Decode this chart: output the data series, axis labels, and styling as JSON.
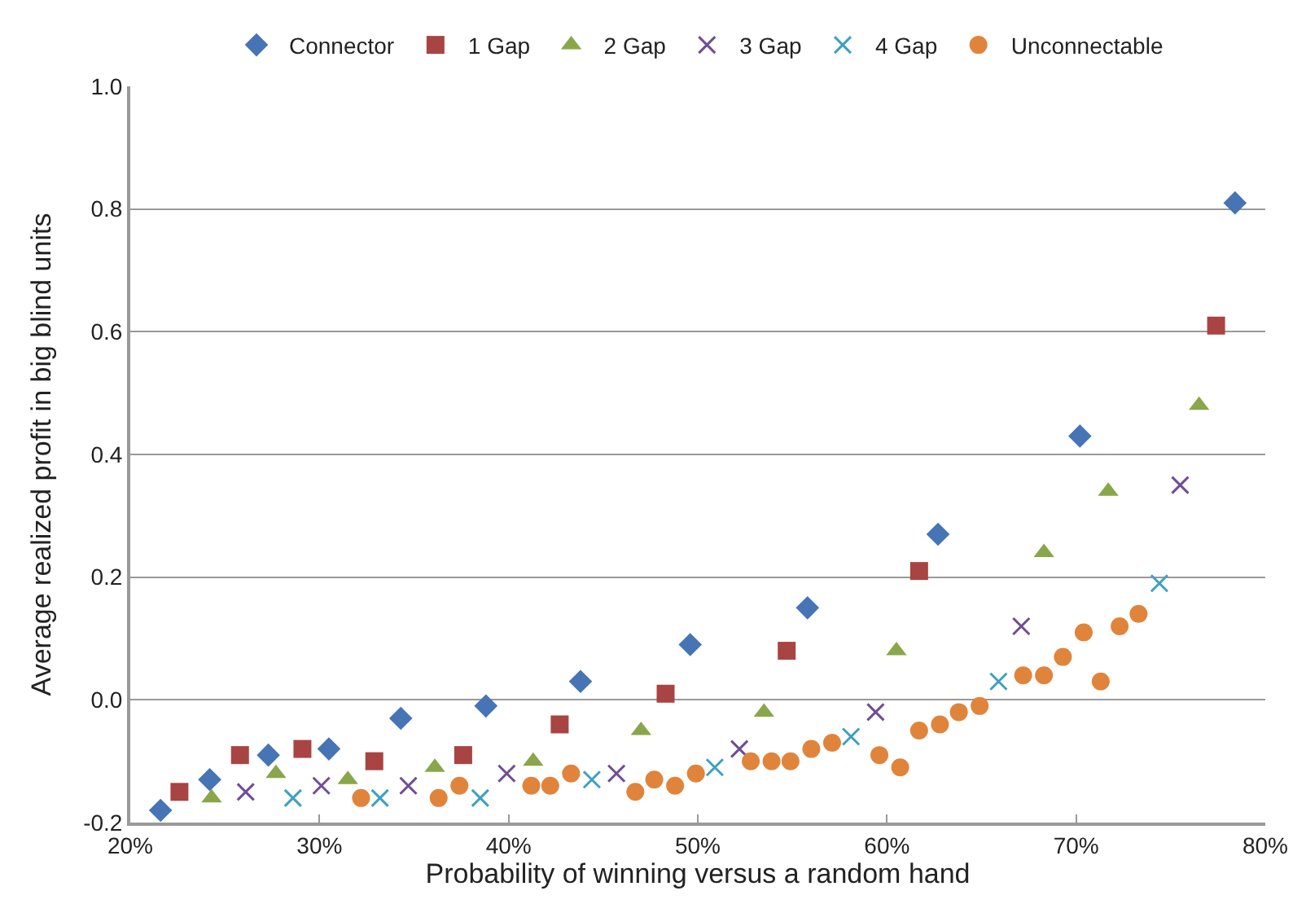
{
  "chart_data": {
    "type": "scatter",
    "xlabel": "Probability of winning versus a random hand",
    "ylabel": "Average realized profit in big blind units",
    "xlim": [
      20,
      80
    ],
    "xticks": [
      {
        "value": 20,
        "label": "20%"
      },
      {
        "value": 30,
        "label": "30%"
      },
      {
        "value": 40,
        "label": "40%"
      },
      {
        "value": 50,
        "label": "50%"
      },
      {
        "value": 60,
        "label": "60%"
      },
      {
        "value": 70,
        "label": "70%"
      },
      {
        "value": 80,
        "label": "80%"
      }
    ],
    "ylim": [
      -0.2,
      1.0
    ],
    "yticks": [
      {
        "value": -0.2,
        "label": "-0.2"
      },
      {
        "value": 0,
        "label": "0.0"
      },
      {
        "value": 0.2,
        "label": "0.2"
      },
      {
        "value": 0.4,
        "label": "0.4"
      },
      {
        "value": 0.6,
        "label": "0.6"
      },
      {
        "value": 0.8,
        "label": "0.8"
      },
      {
        "value": 1.0,
        "label": "1.0"
      }
    ],
    "grid": "y",
    "legend": "top",
    "series": [
      {
        "name": "Connector",
        "color": "#4674b4",
        "marker": "diamond",
        "x": [
          21.6,
          24.2,
          27.3,
          30.5,
          34.3,
          38.8,
          43.8,
          49.6,
          55.8,
          62.7,
          70.2,
          78.4
        ],
        "values": [
          -0.18,
          -0.13,
          -0.09,
          -0.08,
          -0.03,
          -0.01,
          0.03,
          0.09,
          0.15,
          0.27,
          0.43,
          0.81
        ]
      },
      {
        "name": "1 Gap",
        "color": "#a84442",
        "marker": "square",
        "x": [
          22.6,
          25.8,
          29.1,
          32.9,
          37.6,
          42.7,
          48.3,
          54.7,
          61.7,
          77.4
        ],
        "values": [
          -0.15,
          -0.09,
          -0.08,
          -0.1,
          -0.09,
          -0.04,
          0.01,
          0.08,
          0.21,
          0.61
        ]
      },
      {
        "name": "2 Gap",
        "color": "#8aa64a",
        "marker": "triangle",
        "x": [
          24.3,
          27.7,
          31.5,
          36.1,
          41.3,
          47.0,
          53.5,
          60.5,
          68.3,
          71.7,
          76.5
        ],
        "values": [
          -0.16,
          -0.12,
          -0.13,
          -0.11,
          -0.1,
          -0.05,
          -0.02,
          0.08,
          0.24,
          0.34,
          0.48
        ]
      },
      {
        "name": "3 Gap",
        "color": "#6e4d96",
        "marker": "cross",
        "x": [
          26.1,
          30.1,
          34.7,
          39.9,
          45.7,
          52.2,
          59.4,
          67.1,
          75.5
        ],
        "values": [
          -0.15,
          -0.14,
          -0.14,
          -0.12,
          -0.12,
          -0.08,
          -0.02,
          0.12,
          0.35
        ]
      },
      {
        "name": "4 Gap",
        "color": "#3fa0c0",
        "marker": "cross",
        "x": [
          28.6,
          33.2,
          38.5,
          44.4,
          50.9,
          58.1,
          65.9,
          74.4
        ],
        "values": [
          -0.16,
          -0.16,
          -0.16,
          -0.13,
          -0.11,
          -0.06,
          0.03,
          0.19
        ]
      },
      {
        "name": "Unconnectable",
        "color": "#e0843c",
        "marker": "circle",
        "x": [
          32.2,
          36.3,
          37.4,
          41.2,
          42.2,
          43.3,
          46.7,
          47.7,
          48.8,
          49.9,
          52.8,
          53.9,
          54.9,
          56.0,
          57.1,
          59.6,
          60.7,
          61.7,
          62.8,
          63.8,
          64.9,
          67.2,
          68.3,
          69.3,
          70.4,
          71.3,
          72.3,
          73.3
        ],
        "values": [
          -0.16,
          -0.16,
          -0.14,
          -0.14,
          -0.14,
          -0.12,
          -0.15,
          -0.13,
          -0.14,
          -0.12,
          -0.1,
          -0.1,
          -0.1,
          -0.08,
          -0.07,
          -0.09,
          -0.11,
          -0.05,
          -0.04,
          -0.02,
          -0.01,
          0.04,
          0.04,
          0.07,
          0.11,
          0.03,
          0.12,
          0.14
        ]
      }
    ]
  }
}
